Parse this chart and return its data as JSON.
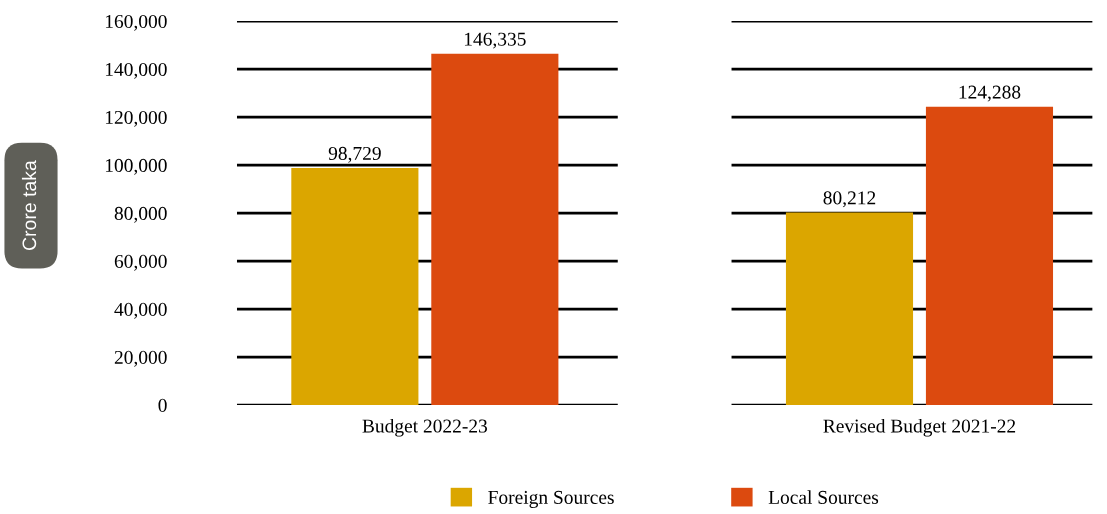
{
  "chart_data": {
    "type": "bar",
    "ylabel": "Crore taka",
    "categories": [
      "Budget 2022-23",
      "Revised Budget 2021-22"
    ],
    "series": [
      {
        "name": "Foreign Sources",
        "color": "#dba600",
        "values": [
          98729,
          80212
        ],
        "value_labels": [
          "98,729",
          "80,212"
        ]
      },
      {
        "name": "Local Sources",
        "color": "#dc4a0f",
        "values": [
          146335,
          124288
        ],
        "value_labels": [
          "146,335",
          "124,288"
        ]
      }
    ],
    "ylim": [
      0,
      160000
    ],
    "yticks": [
      {
        "value": 0,
        "label": "0"
      },
      {
        "value": 20000,
        "label": "20,000"
      },
      {
        "value": 40000,
        "label": "40,000"
      },
      {
        "value": 60000,
        "label": "60,000"
      },
      {
        "value": 80000,
        "label": "80,000"
      },
      {
        "value": 100000,
        "label": "100,000"
      },
      {
        "value": 120000,
        "label": "120,000"
      },
      {
        "value": 140000,
        "label": "140,000"
      },
      {
        "value": 160000,
        "label": "160,000"
      }
    ],
    "grid": "y",
    "legend": "bottom"
  }
}
